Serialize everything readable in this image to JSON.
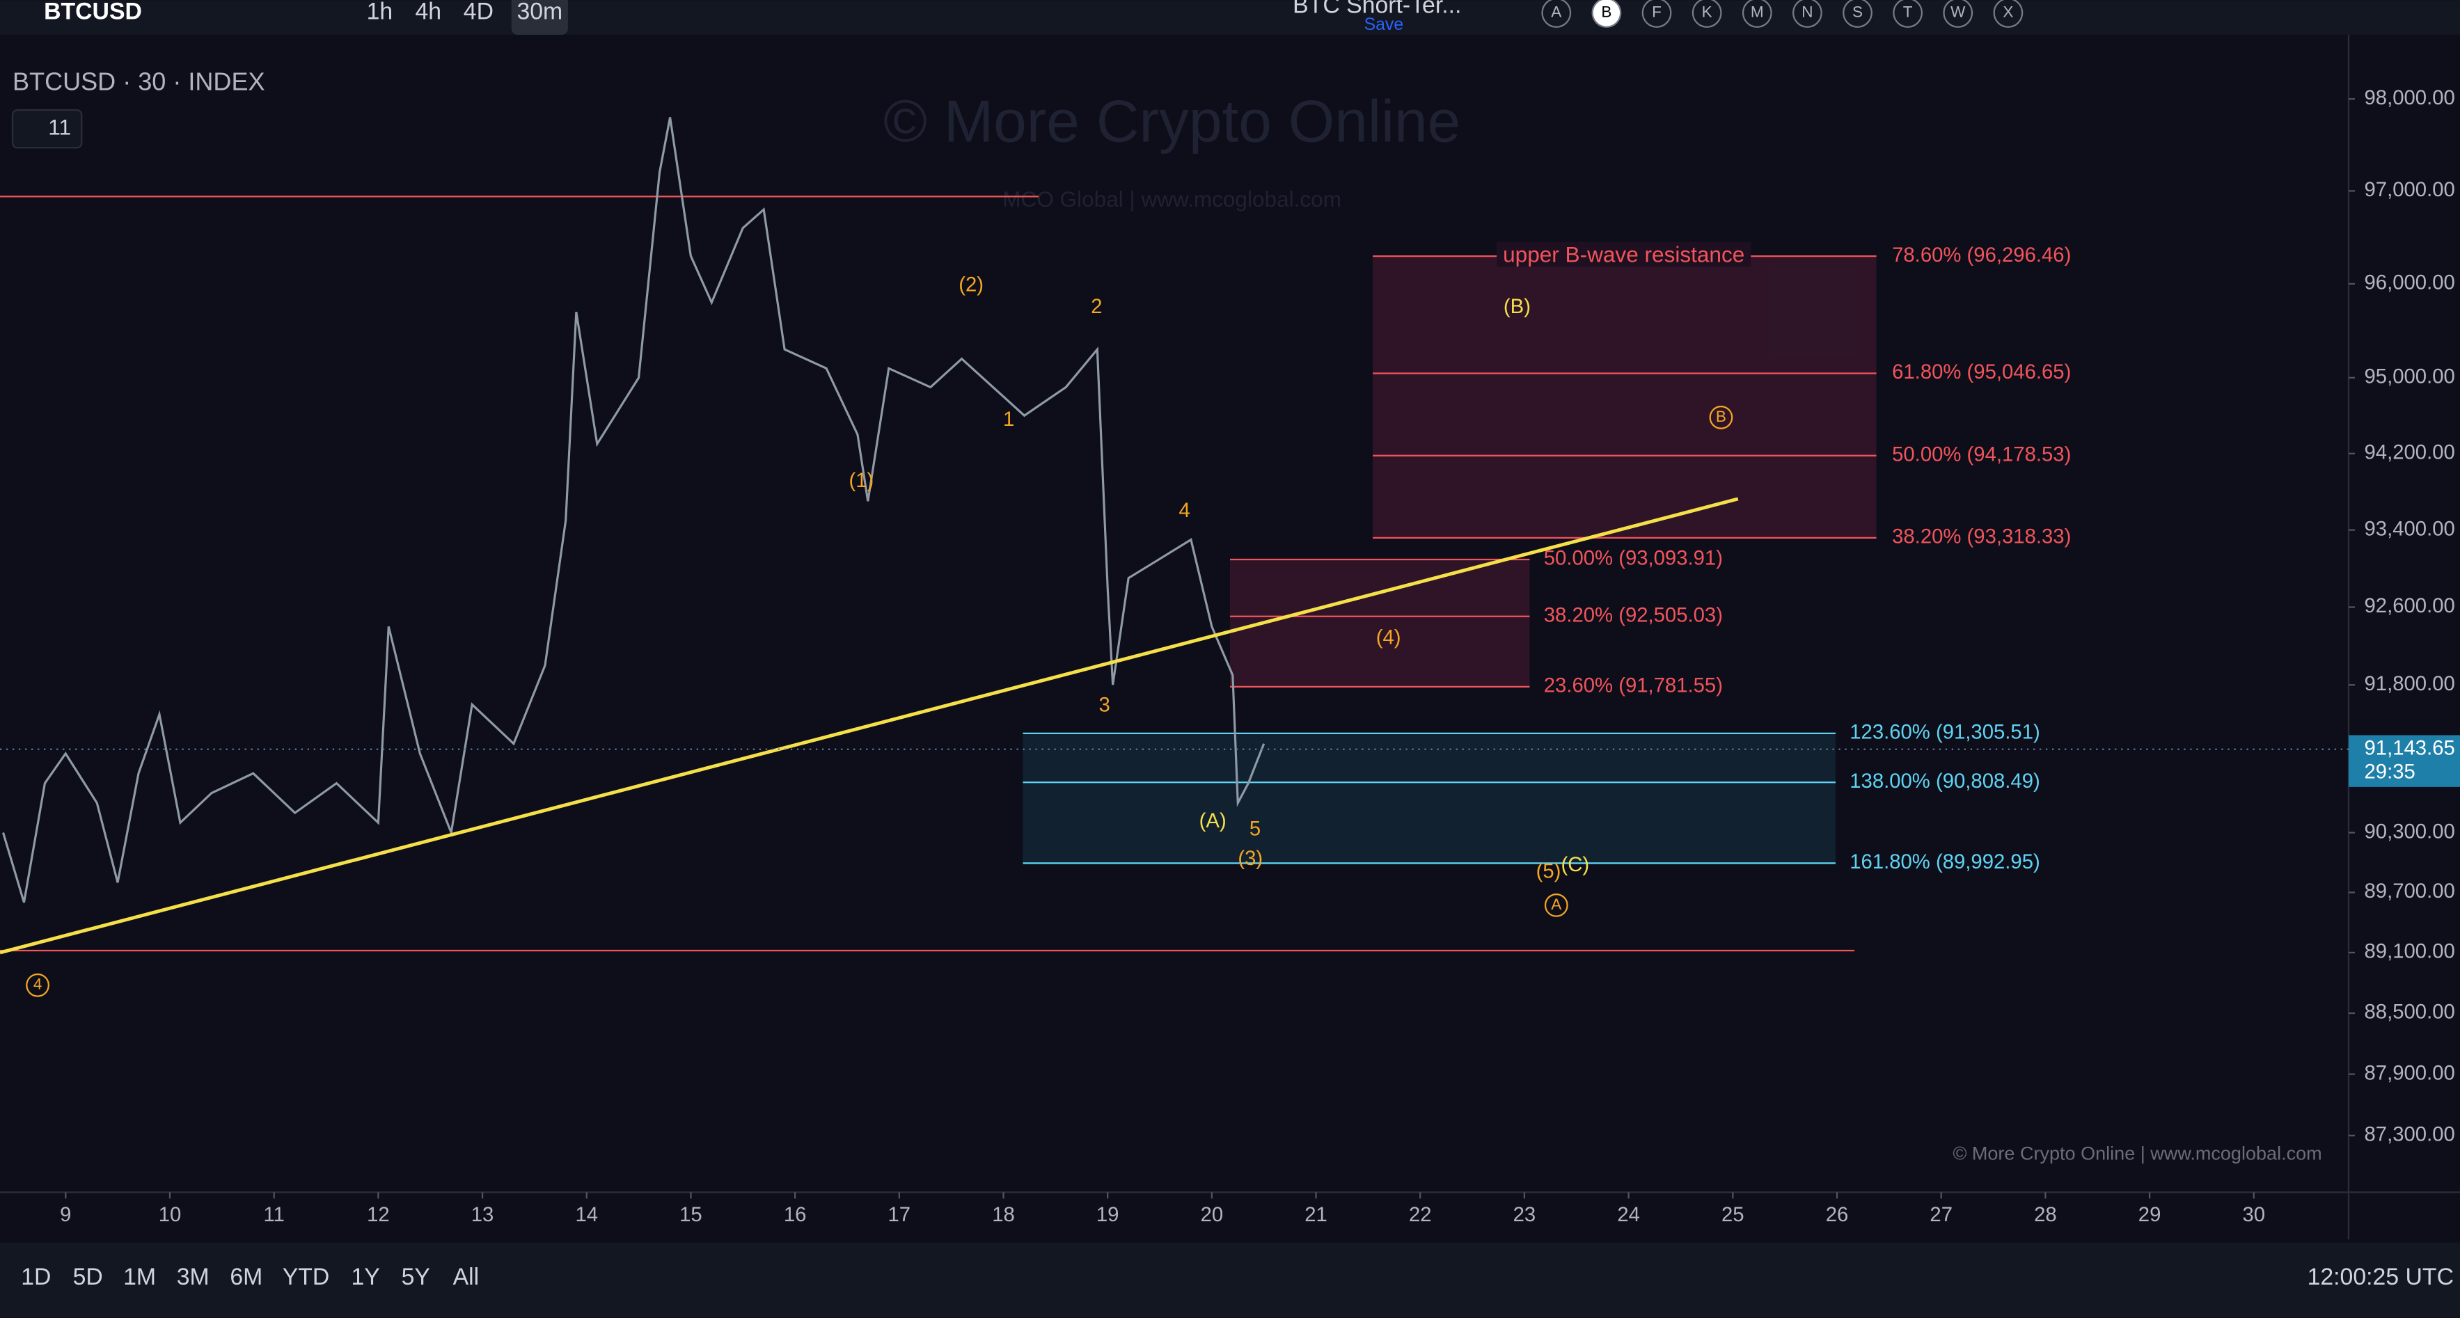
{
  "toolbar": {
    "symbol": "BTCUSD",
    "timeframes": [
      "1h",
      "4h",
      "4D",
      "30m"
    ],
    "active_timeframe": 3,
    "layout_title": "BTC Short-Ter...",
    "save": "Save",
    "letters": [
      "A",
      "B",
      "F",
      "K",
      "M",
      "N",
      "S",
      "T",
      "W",
      "X"
    ],
    "active_letter": 1
  },
  "chart": {
    "legend": "BTCUSD · 30 · INDEX",
    "indicator_count": "11",
    "watermark": "© More Crypto Online",
    "watermark_sub": "MCO Global  |  www.mcoglobal.com",
    "credit": "© More Crypto Online  |  www.mcoglobal.com",
    "log_scale": true,
    "ylim": [
      86750,
      98480
    ],
    "yticks": [
      {
        "value": 98000,
        "label": "98,000.00"
      },
      {
        "value": 97000,
        "label": "97,000.00"
      },
      {
        "value": 96000,
        "label": "96,000.00"
      },
      {
        "value": 95000,
        "label": "95,000.00"
      },
      {
        "value": 94200,
        "label": "94,200.00"
      },
      {
        "value": 93400,
        "label": "93,400.00"
      },
      {
        "value": 92600,
        "label": "92,600.00"
      },
      {
        "value": 91800,
        "label": "91,800.00"
      },
      {
        "value": 90300,
        "label": "90,300.00"
      },
      {
        "value": 89700,
        "label": "89,700.00"
      },
      {
        "value": 89100,
        "label": "89,100.00"
      },
      {
        "value": 88500,
        "label": "88,500.00"
      },
      {
        "value": 87900,
        "label": "87,900.00"
      },
      {
        "value": 87300,
        "label": "87,300.00"
      }
    ],
    "xlim": [
      8.37,
      30.91
    ],
    "xticks": [
      9,
      10,
      11,
      12,
      13,
      14,
      15,
      16,
      17,
      18,
      19,
      20,
      21,
      22,
      23,
      24,
      25,
      26,
      27,
      28,
      29,
      30
    ],
    "price": {
      "color": "#8f9aa6",
      "x": [
        8.4,
        8.6,
        8.8,
        9.0,
        9.3,
        9.5,
        9.7,
        9.9,
        10.1,
        10.4,
        10.8,
        11.2,
        11.6,
        12.0,
        12.1,
        12.4,
        12.7,
        12.9,
        13.3,
        13.6,
        13.8,
        13.9,
        14.1,
        14.5,
        14.7,
        14.8,
        15.0,
        15.2,
        15.5,
        15.7,
        15.9,
        16.3,
        16.6,
        16.7,
        16.9,
        17.3,
        17.6,
        18.0,
        18.2,
        18.6,
        18.9,
        19.0,
        19.05,
        19.2,
        19.5,
        19.8,
        20.0,
        20.2,
        20.25,
        20.35,
        20.5
      ],
      "values": [
        90300,
        89600,
        90800,
        91100,
        90600,
        89800,
        90900,
        91500,
        90400,
        90700,
        90900,
        90500,
        90800,
        90400,
        92400,
        91100,
        90300,
        91600,
        91200,
        92000,
        93500,
        95700,
        94300,
        95000,
        97200,
        97800,
        96300,
        95800,
        96600,
        96800,
        95300,
        95100,
        94400,
        93700,
        95100,
        94900,
        95200,
        94800,
        94600,
        94900,
        95300,
        92800,
        91800,
        92900,
        93100,
        93300,
        92400,
        91900,
        90600,
        90800,
        91200
      ]
    },
    "trendline": {
      "color": "#f5e04a",
      "x": [
        8.37,
        25.05
      ],
      "values": [
        89100,
        93725
      ]
    },
    "levels": [
      {
        "color": "#f2545b",
        "value": 96940
      },
      {
        "color": "#f2545b",
        "value": 89120
      }
    ],
    "current_price": {
      "label": "91,143.65",
      "value": 91143.65,
      "countdown": "29:35"
    },
    "fib_zones": [
      {
        "color": "#f2545b",
        "fill": "rgba(150,40,80,0.25)",
        "levels": [
          {
            "label": "78.60% (96,296.46)",
            "value": 96296.46
          },
          {
            "label": "61.80% (95,046.65)",
            "value": 95046.65
          },
          {
            "label": "50.00% (94,178.53)",
            "value": 94178.53
          },
          {
            "label": "38.20% (93,318.33)",
            "value": 93318.33
          }
        ]
      },
      {
        "color": "#f2545b",
        "fill": "rgba(150,40,80,0.25)",
        "levels": [
          {
            "label": "50.00% (93,093.91)",
            "value": 93093.91
          },
          {
            "label": "38.20% (92,505.03)",
            "value": 92505.03
          },
          {
            "label": "23.60% (91,781.55)",
            "value": 91781.55
          }
        ]
      },
      {
        "color": "#5fd3f3",
        "fill": "rgba(40,120,150,0.18)",
        "levels": [
          {
            "label": "123.60% (91,305.51)",
            "value": 91305.51
          },
          {
            "label": "138.00% (90,808.49)",
            "value": 90808.49
          },
          {
            "label": "161.80% (89,992.95)",
            "value": 89992.95
          }
        ]
      }
    ],
    "zone_title": "upper B-wave resistance",
    "wave_labels": [
      {
        "text": "(2)",
        "color": "#f5a623"
      },
      {
        "text": "2",
        "color": "#f5a623"
      },
      {
        "text": "1",
        "color": "#f5a623"
      },
      {
        "text": "(1)",
        "color": "#f5a623"
      },
      {
        "text": "4",
        "color": "#f5a623"
      },
      {
        "text": "3",
        "color": "#f5a623"
      },
      {
        "text": "(A)",
        "color": "#f5e04a"
      },
      {
        "text": "5",
        "color": "#f5a623"
      },
      {
        "text": "(3)",
        "color": "#f5a623"
      },
      {
        "text": "(4)",
        "color": "#f5a623"
      },
      {
        "text": "(B)",
        "color": "#f5e04a"
      },
      {
        "text": "B",
        "color": "#f5a623"
      },
      {
        "text": "(5)",
        "color": "#f5a623"
      },
      {
        "text": "(C)",
        "color": "#f5e04a"
      },
      {
        "text": "A",
        "color": "#f5a623"
      },
      {
        "text": "4",
        "color": "#f5a623"
      }
    ]
  },
  "bottom_bar": {
    "ranges": [
      "1D",
      "5D",
      "1M",
      "3M",
      "6M",
      "YTD",
      "1Y",
      "5Y",
      "All"
    ],
    "clock": "12:00:25 UTC"
  }
}
